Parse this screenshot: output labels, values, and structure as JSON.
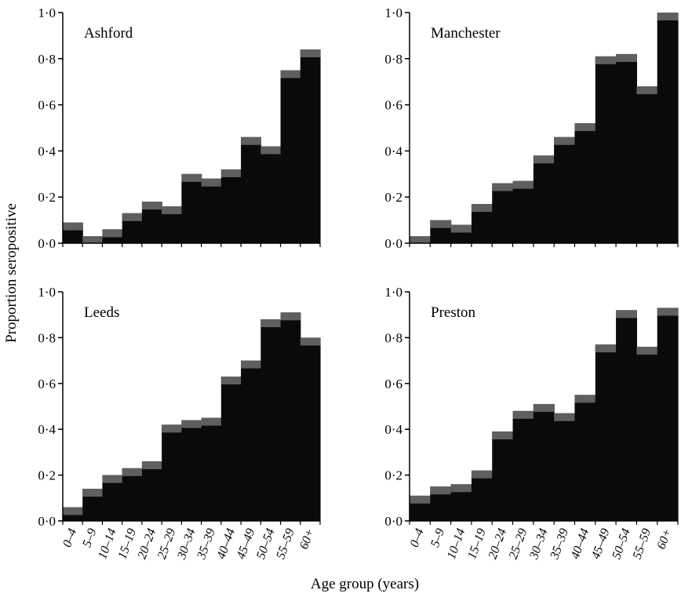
{
  "figure": {
    "ylabel": "Proportion seropositive",
    "xlabel": "Age group (years)"
  },
  "colors": {
    "bar_fill": "#0a0a0a",
    "bar_top": "#6e6e6e",
    "axis": "#000000"
  },
  "chart_data": [
    {
      "type": "bar",
      "title": "Ashford",
      "categories": [
        "0–4",
        "5–9",
        "10–14",
        "15–19",
        "20–24",
        "25–29",
        "30–34",
        "35–39",
        "40–44",
        "45–49",
        "50–54",
        "55–59",
        "60+"
      ],
      "values": [
        0.09,
        0.03,
        0.06,
        0.13,
        0.18,
        0.16,
        0.3,
        0.28,
        0.32,
        0.46,
        0.42,
        0.75,
        0.84
      ],
      "ylim": [
        0,
        1.0
      ],
      "yticks": [
        "0·0",
        "0·2",
        "0·4",
        "0·6",
        "0·8",
        "1·0"
      ],
      "grid": false
    },
    {
      "type": "bar",
      "title": "Manchester",
      "categories": [
        "0–4",
        "5–9",
        "10–14",
        "15–19",
        "20–24",
        "25–29",
        "30–34",
        "35–39",
        "40–44",
        "45–49",
        "50–54",
        "55–59",
        "60+"
      ],
      "values": [
        0.03,
        0.1,
        0.08,
        0.17,
        0.26,
        0.27,
        0.38,
        0.46,
        0.52,
        0.81,
        0.82,
        0.68,
        1.0
      ],
      "ylim": [
        0,
        1.0
      ],
      "yticks": [
        "0·0",
        "0·2",
        "0·4",
        "0·6",
        "0·8",
        "1·0"
      ],
      "grid": false
    },
    {
      "type": "bar",
      "title": "Leeds",
      "categories": [
        "0–4",
        "5–9",
        "10–14",
        "15–19",
        "20–24",
        "25–29",
        "30–34",
        "35–39",
        "40–44",
        "45–49",
        "50–54",
        "55–59",
        "60+"
      ],
      "values": [
        0.06,
        0.14,
        0.2,
        0.23,
        0.26,
        0.42,
        0.44,
        0.45,
        0.63,
        0.7,
        0.88,
        0.91,
        0.8
      ],
      "ylim": [
        0,
        1.0
      ],
      "yticks": [
        "0·0",
        "0·2",
        "0·4",
        "0·6",
        "0·8",
        "1·0"
      ],
      "grid": false
    },
    {
      "type": "bar",
      "title": "Preston",
      "categories": [
        "0–4",
        "5–9",
        "10–14",
        "15–19",
        "20–24",
        "25–29",
        "30–34",
        "35–39",
        "40–44",
        "45–49",
        "50–54",
        "55–59",
        "60+"
      ],
      "values": [
        0.11,
        0.15,
        0.16,
        0.22,
        0.39,
        0.48,
        0.51,
        0.47,
        0.55,
        0.77,
        0.92,
        0.76,
        0.93
      ],
      "ylim": [
        0,
        1.0
      ],
      "yticks": [
        "0·0",
        "0·2",
        "0·4",
        "0·6",
        "0·8",
        "1·0"
      ],
      "grid": false
    }
  ]
}
